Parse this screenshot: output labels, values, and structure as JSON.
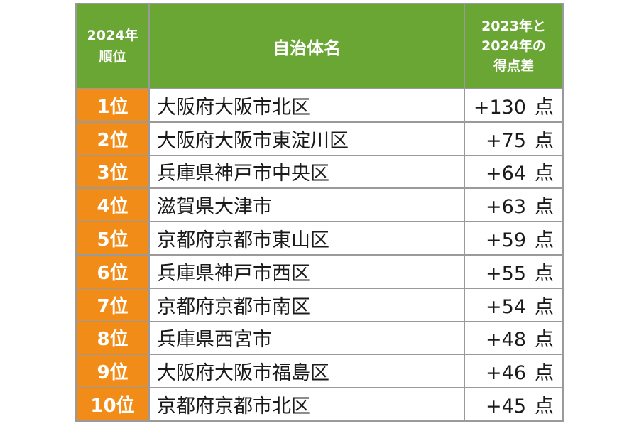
{
  "header": {
    "rank_line1": "2024年",
    "rank_line2": "順位",
    "name": "自治体名",
    "diff_line1": "2023年と",
    "diff_line2": "2024年の",
    "diff_line3": "得点差"
  },
  "colors": {
    "header_bg": "#6aa634",
    "rank_bg": "#f28c18",
    "border": "#9a9a9a"
  },
  "rows": [
    {
      "rank": "1位",
      "name": "大阪府大阪市北区",
      "diff": "+130",
      "unit": "点"
    },
    {
      "rank": "2位",
      "name": "大阪府大阪市東淀川区",
      "diff": "+75",
      "unit": "点"
    },
    {
      "rank": "3位",
      "name": "兵庫県神戸市中央区",
      "diff": "+64",
      "unit": "点"
    },
    {
      "rank": "4位",
      "name": "滋賀県大津市",
      "diff": "+63",
      "unit": "点"
    },
    {
      "rank": "5位",
      "name": "京都府京都市東山区",
      "diff": "+59",
      "unit": "点"
    },
    {
      "rank": "6位",
      "name": "兵庫県神戸市西区",
      "diff": "+55",
      "unit": "点"
    },
    {
      "rank": "7位",
      "name": "京都府京都市南区",
      "diff": "+54",
      "unit": "点"
    },
    {
      "rank": "8位",
      "name": "兵庫県西宮市",
      "diff": "+48",
      "unit": "点"
    },
    {
      "rank": "9位",
      "name": "大阪府大阪市福島区",
      "diff": "+46",
      "unit": "点"
    },
    {
      "rank": "10位",
      "name": "京都府京都市北区",
      "diff": "+45",
      "unit": "点"
    }
  ]
}
